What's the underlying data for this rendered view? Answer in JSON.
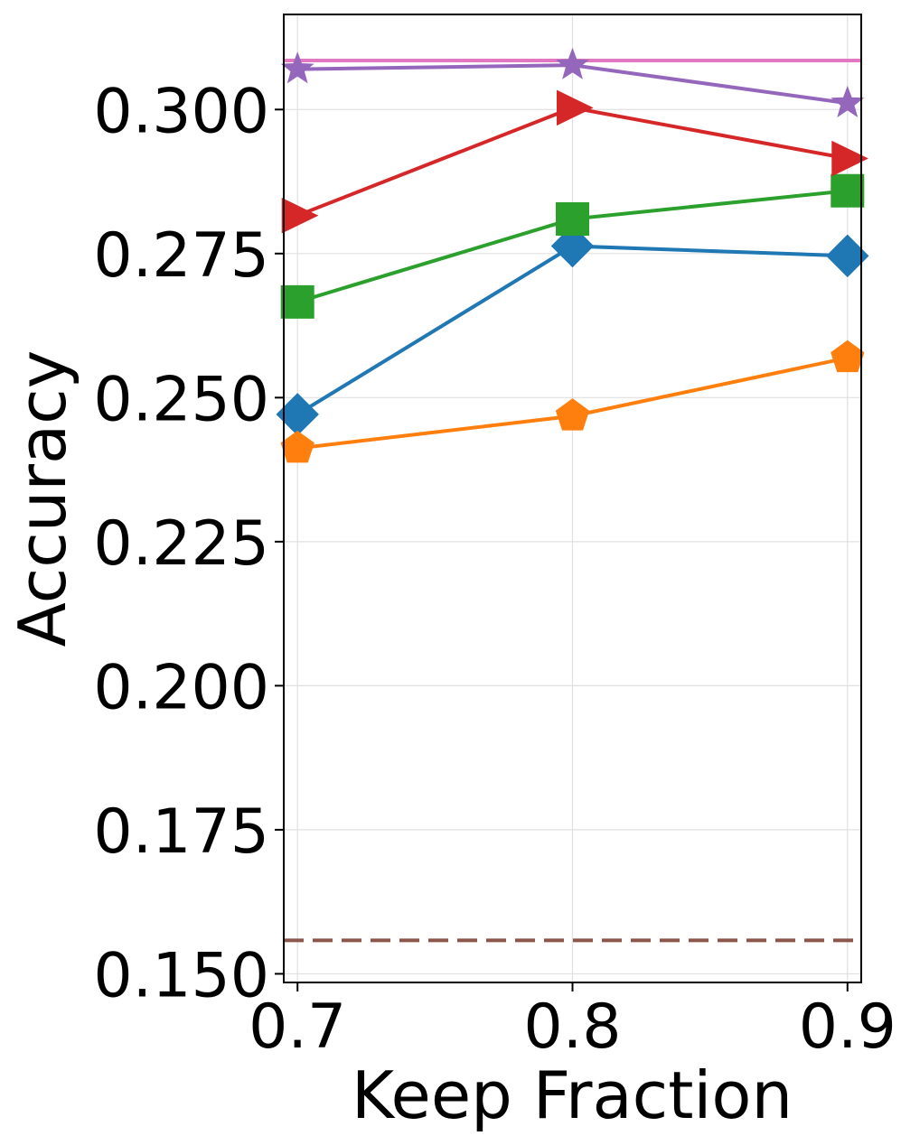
{
  "chart_data": {
    "type": "line",
    "title": "",
    "xlabel": "Keep Fraction",
    "ylabel": "Accuracy",
    "xlim": [
      0.695,
      0.905
    ],
    "ylim": [
      0.1485,
      0.3165
    ],
    "x": [
      0.7,
      0.8,
      0.9
    ],
    "x_tick_labels": [
      "0.7",
      "0.8",
      "0.9"
    ],
    "y_ticks": [
      0.15,
      0.175,
      0.2,
      0.225,
      0.25,
      0.275,
      0.3
    ],
    "y_tick_labels": [
      "0.150",
      "0.175",
      "0.200",
      "0.225",
      "0.250",
      "0.275",
      "0.300"
    ],
    "grid": true,
    "legend": "none",
    "series": [
      {
        "values": [
          0.2471,
          0.2763,
          0.2746
        ],
        "color": "#1f77b4",
        "marker": "diamond"
      },
      {
        "values": [
          0.2412,
          0.2468,
          0.2569
        ],
        "color": "#ff7f0e",
        "marker": "pentagon"
      },
      {
        "values": [
          0.2666,
          0.281,
          0.2859
        ],
        "color": "#2ca02c",
        "marker": "square"
      },
      {
        "values": [
          0.2816,
          0.3003,
          0.2915
        ],
        "color": "#d62728",
        "marker": "triangle-right"
      },
      {
        "values": [
          0.307,
          0.3077,
          0.3011
        ],
        "color": "#9467bd",
        "marker": "star"
      }
    ],
    "reference_lines": [
      {
        "value": 0.3085,
        "color": "#e377c2",
        "style": "solid"
      },
      {
        "value": 0.1558,
        "color": "#8c564b",
        "style": "dashed"
      }
    ]
  }
}
